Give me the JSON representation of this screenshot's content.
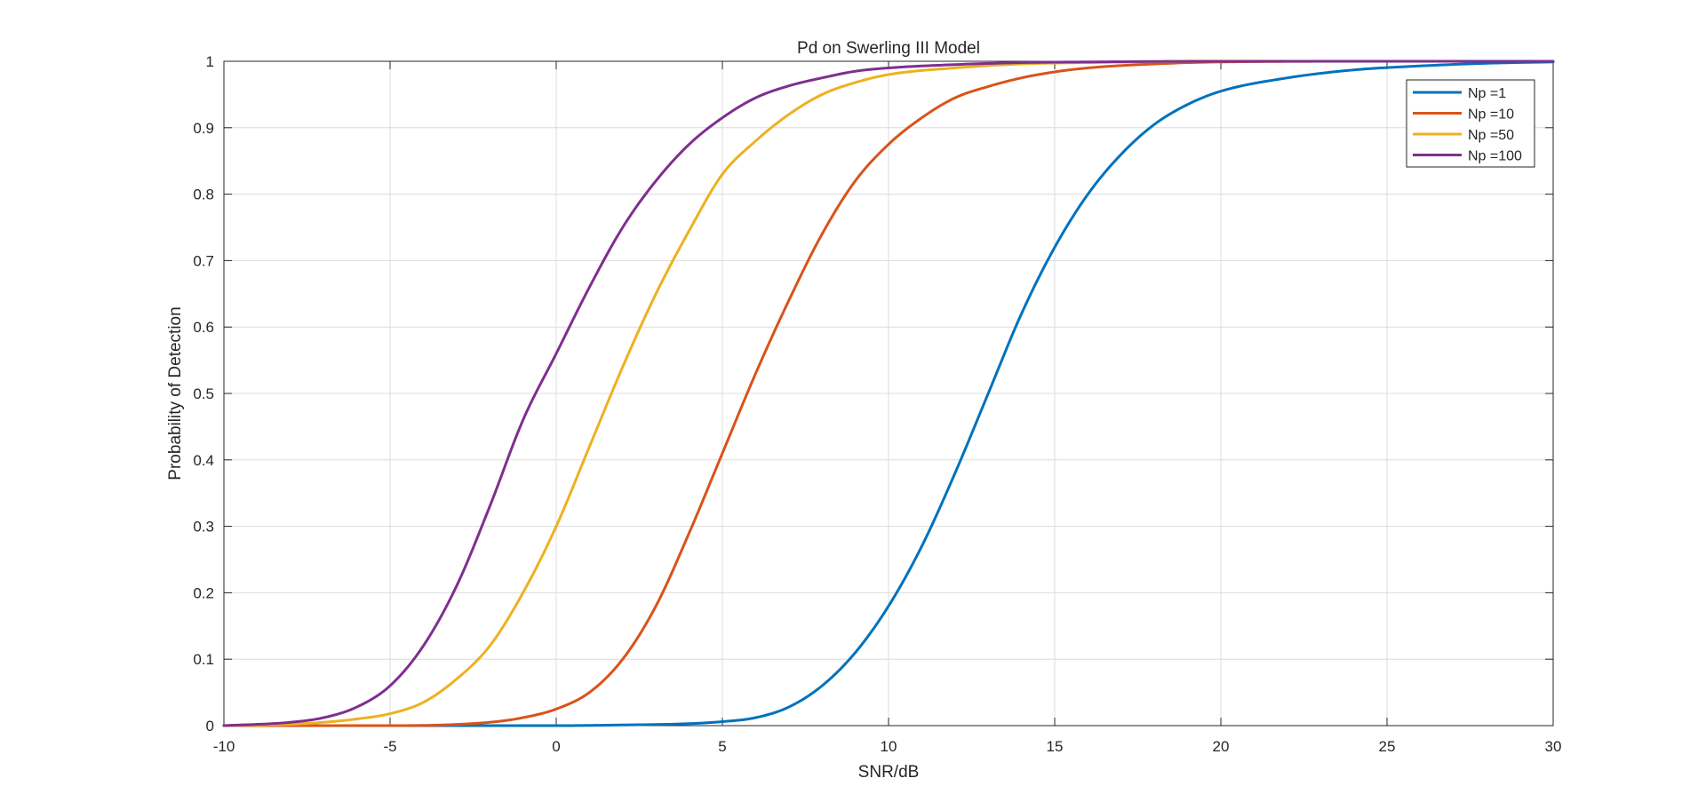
{
  "chart_data": {
    "type": "line",
    "title": "Pd on Swerling III Model",
    "xlabel": "SNR/dB",
    "ylabel": "Probability of Detection",
    "xlim": [
      -10,
      30
    ],
    "ylim": [
      0,
      1
    ],
    "xticks": [
      -10,
      -5,
      0,
      5,
      10,
      15,
      20,
      25,
      30
    ],
    "xtick_labels": [
      "-10",
      "-5",
      "0",
      "5",
      "10",
      "15",
      "20",
      "25",
      "30"
    ],
    "yticks": [
      0,
      0.1,
      0.2,
      0.3,
      0.4,
      0.5,
      0.6,
      0.7,
      0.8,
      0.9,
      1
    ],
    "ytick_labels": [
      "0",
      "0.1",
      "0.2",
      "0.3",
      "0.4",
      "0.5",
      "0.6",
      "0.7",
      "0.8",
      "0.9",
      "1"
    ],
    "grid": true,
    "legend_position": "top-right",
    "series": [
      {
        "name": "Np =1",
        "color": "#0072BD",
        "x": [
          -10,
          0,
          2,
          4,
          5,
          6,
          7,
          8,
          9,
          10,
          11,
          12,
          13,
          14,
          15,
          16,
          17,
          18,
          19,
          20,
          22,
          24,
          26,
          28,
          30
        ],
        "y": [
          0,
          0,
          0.001,
          0.003,
          0.006,
          0.012,
          0.028,
          0.06,
          0.11,
          0.18,
          0.27,
          0.38,
          0.5,
          0.62,
          0.72,
          0.8,
          0.86,
          0.905,
          0.935,
          0.955,
          0.975,
          0.987,
          0.993,
          0.997,
          0.999
        ]
      },
      {
        "name": "Np =10",
        "color": "#D95319",
        "x": [
          -10,
          -5,
          -2,
          -1,
          0,
          1,
          2,
          3,
          4,
          5,
          6,
          7,
          8,
          9,
          10,
          11,
          12,
          13,
          14,
          15,
          16,
          18,
          20,
          25,
          30
        ],
        "y": [
          0,
          0,
          0.005,
          0.012,
          0.025,
          0.05,
          0.1,
          0.18,
          0.29,
          0.41,
          0.53,
          0.64,
          0.74,
          0.82,
          0.875,
          0.915,
          0.945,
          0.962,
          0.975,
          0.984,
          0.99,
          0.996,
          0.999,
          1,
          1
        ]
      },
      {
        "name": "Np =50",
        "color": "#EDB120",
        "x": [
          -10,
          -8,
          -7,
          -6,
          -5,
          -4,
          -3,
          -2,
          -1,
          0,
          1,
          2,
          3,
          4,
          5,
          6,
          7,
          8,
          9,
          10,
          12,
          14,
          16,
          20,
          30
        ],
        "y": [
          0,
          0.002,
          0.005,
          0.01,
          0.018,
          0.035,
          0.07,
          0.12,
          0.2,
          0.3,
          0.42,
          0.54,
          0.65,
          0.745,
          0.83,
          0.88,
          0.92,
          0.95,
          0.968,
          0.98,
          0.99,
          0.996,
          0.998,
          1,
          1
        ]
      },
      {
        "name": "Np =100",
        "color": "#7E2F8E",
        "x": [
          -10,
          -8,
          -7,
          -6,
          -5,
          -4,
          -3,
          -2,
          -1,
          0,
          1,
          2,
          3,
          4,
          5,
          6,
          7,
          8,
          9,
          10,
          12,
          14,
          16,
          20,
          30
        ],
        "y": [
          0,
          0.005,
          0.012,
          0.028,
          0.06,
          0.12,
          0.21,
          0.33,
          0.46,
          0.56,
          0.66,
          0.75,
          0.82,
          0.875,
          0.915,
          0.945,
          0.963,
          0.975,
          0.985,
          0.99,
          0.995,
          0.998,
          0.999,
          1,
          1
        ]
      }
    ]
  }
}
